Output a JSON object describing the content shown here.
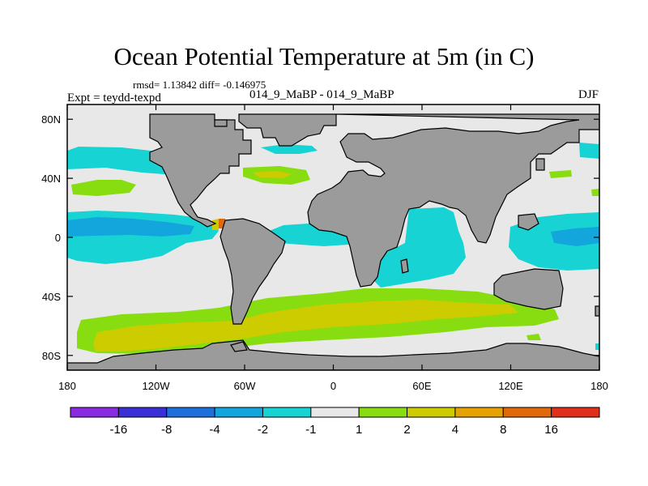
{
  "header": {
    "title": "Ocean Potential Temperature at 5m (in C)",
    "stats": "rmsd= 1.13842  diff= -0.146975",
    "expt": "Expt = teydd-texpd",
    "case": "014_9_MaBP - 014_9_MaBP",
    "season": "DJF"
  },
  "chart_data": {
    "type": "heatmap",
    "title": "Ocean Potential Temperature at 5m (in C)",
    "projection": "cylindrical equidistant",
    "xlim": [
      -180,
      180
    ],
    "ylim": [
      -90,
      90
    ],
    "x_ticks": [
      {
        "value": -180,
        "label": "180"
      },
      {
        "value": -120,
        "label": "120W"
      },
      {
        "value": -60,
        "label": "60W"
      },
      {
        "value": 0,
        "label": "0"
      },
      {
        "value": 60,
        "label": "60E"
      },
      {
        "value": 120,
        "label": "120E"
      },
      {
        "value": 180,
        "label": "180"
      }
    ],
    "y_ticks": [
      {
        "value": 80,
        "label": "80N"
      },
      {
        "value": 40,
        "label": "40N"
      },
      {
        "value": 0,
        "label": "0"
      },
      {
        "value": -40,
        "label": "40S"
      },
      {
        "value": -80,
        "label": "80S"
      }
    ],
    "colorbar": {
      "levels": [
        "-16",
        "-8",
        "-4",
        "-2",
        "-1",
        "1",
        "2",
        "4",
        "8",
        "16"
      ],
      "colors": [
        "#8a2be2",
        "#3a2fd6",
        "#1e6fd9",
        "#12a6dc",
        "#18d3d3",
        "#e8e8e8",
        "#88dd11",
        "#cccc00",
        "#e6a200",
        "#e06a0a",
        "#e0301c"
      ]
    },
    "land_color": "#9b9b9b",
    "regions": [
      {
        "id": "n-pacific-cool",
        "bin": "-2 to -1",
        "lon": [
          -180,
          -118
        ],
        "lat": [
          42,
          58
        ]
      },
      {
        "id": "n-atlantic-warm",
        "bin": "1 to 2",
        "lon": [
          -60,
          -20
        ],
        "lat": [
          38,
          48
        ]
      },
      {
        "id": "tropical-pacific-cool",
        "bin": "-4 to -1",
        "lon": [
          -180,
          -85
        ],
        "lat": [
          -20,
          15
        ]
      },
      {
        "id": "tropical-atlantic-cool",
        "bin": "-2 to -1",
        "lon": [
          -45,
          12
        ],
        "lat": [
          -15,
          5
        ]
      },
      {
        "id": "indian-ocean-cool",
        "bin": "-2 to -1",
        "lon": [
          50,
          100
        ],
        "lat": [
          -25,
          22
        ]
      },
      {
        "id": "southern-ocean-warm",
        "bin": "1 to 4",
        "lon": [
          -175,
          140
        ],
        "lat": [
          -80,
          -35
        ]
      }
    ]
  }
}
